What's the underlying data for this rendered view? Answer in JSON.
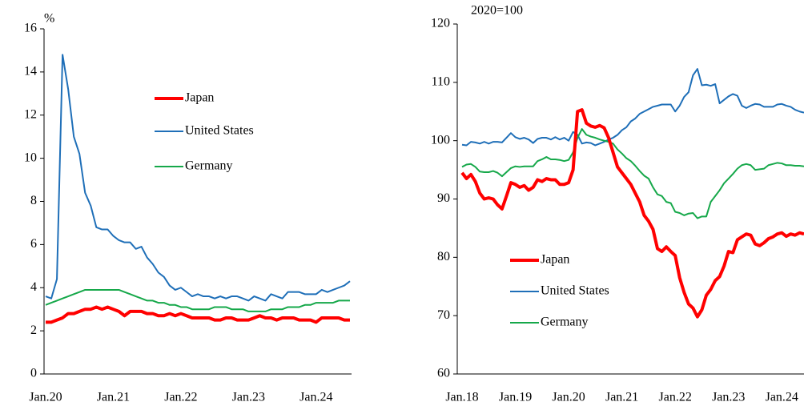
{
  "chart_data": [
    {
      "type": "line",
      "y_label": "%",
      "categories": [
        "Jan.20",
        null,
        null,
        null,
        null,
        null,
        null,
        null,
        null,
        null,
        null,
        null,
        "Jan.21",
        null,
        null,
        null,
        null,
        null,
        null,
        null,
        null,
        null,
        null,
        null,
        "Jan.22",
        null,
        null,
        null,
        null,
        null,
        null,
        null,
        null,
        null,
        null,
        null,
        "Jan.23",
        null,
        null,
        null,
        null,
        null,
        null,
        null,
        null,
        null,
        null,
        null,
        "Jan.24",
        null,
        null,
        null,
        null,
        null,
        null
      ],
      "ylim": [
        0,
        16
      ],
      "yticks": [
        0,
        2,
        4,
        6,
        8,
        10,
        12,
        14,
        16
      ],
      "series": [
        {
          "name": "Japan",
          "color": "#ff0000",
          "values": [
            2.4,
            2.4,
            2.5,
            2.6,
            2.8,
            2.8,
            2.9,
            3.0,
            3.0,
            3.1,
            3.0,
            3.1,
            3.0,
            2.9,
            2.7,
            2.9,
            2.9,
            2.9,
            2.8,
            2.8,
            2.7,
            2.7,
            2.8,
            2.7,
            2.8,
            2.7,
            2.6,
            2.6,
            2.6,
            2.6,
            2.5,
            2.5,
            2.6,
            2.6,
            2.5,
            2.5,
            2.5,
            2.6,
            2.7,
            2.6,
            2.6,
            2.5,
            2.6,
            2.6,
            2.6,
            2.5,
            2.5,
            2.5,
            2.4,
            2.6,
            2.6,
            2.6,
            2.6,
            2.5,
            2.5
          ]
        },
        {
          "name": "United States",
          "color": "#1f6fb8",
          "values": [
            3.6,
            3.5,
            4.4,
            14.8,
            13.2,
            11.0,
            10.2,
            8.4,
            7.8,
            6.8,
            6.7,
            6.7,
            6.4,
            6.2,
            6.1,
            6.1,
            5.8,
            5.9,
            5.4,
            5.1,
            4.7,
            4.5,
            4.1,
            3.9,
            4.0,
            3.8,
            3.6,
            3.7,
            3.6,
            3.6,
            3.5,
            3.6,
            3.5,
            3.6,
            3.6,
            3.5,
            3.4,
            3.6,
            3.5,
            3.4,
            3.7,
            3.6,
            3.5,
            3.8,
            3.8,
            3.8,
            3.7,
            3.7,
            3.7,
            3.9,
            3.8,
            3.9,
            4.0,
            4.1,
            4.3
          ]
        },
        {
          "name": "Germany",
          "color": "#16a84a",
          "values": [
            3.2,
            3.3,
            3.4,
            3.5,
            3.6,
            3.7,
            3.8,
            3.9,
            3.9,
            3.9,
            3.9,
            3.9,
            3.9,
            3.9,
            3.8,
            3.7,
            3.6,
            3.5,
            3.4,
            3.4,
            3.3,
            3.3,
            3.2,
            3.2,
            3.1,
            3.1,
            3.0,
            3.0,
            3.0,
            3.0,
            3.1,
            3.1,
            3.1,
            3.0,
            3.0,
            3.0,
            2.9,
            2.9,
            2.9,
            2.9,
            3.0,
            3.0,
            3.0,
            3.1,
            3.1,
            3.1,
            3.2,
            3.2,
            3.3,
            3.3,
            3.3,
            3.3,
            3.4,
            3.4,
            3.4
          ]
        }
      ]
    },
    {
      "type": "line",
      "y_label": "2020=100",
      "categories": [
        "Jan.18",
        null,
        null,
        null,
        null,
        null,
        null,
        null,
        null,
        null,
        null,
        null,
        "Jan.19",
        null,
        null,
        null,
        null,
        null,
        null,
        null,
        null,
        null,
        null,
        null,
        "Jan.20",
        null,
        null,
        null,
        null,
        null,
        null,
        null,
        null,
        null,
        null,
        null,
        "Jan.21",
        null,
        null,
        null,
        null,
        null,
        null,
        null,
        null,
        null,
        null,
        null,
        "Jan.22",
        null,
        null,
        null,
        null,
        null,
        null,
        null,
        null,
        null,
        null,
        null,
        "Jan.23",
        null,
        null,
        null,
        null,
        null,
        null,
        null,
        null,
        null,
        null,
        null,
        "Jan.24",
        null,
        null,
        null,
        null,
        null
      ],
      "ylim": [
        60,
        120
      ],
      "yticks": [
        60,
        70,
        80,
        90,
        100,
        110,
        120
      ],
      "series": [
        {
          "name": "Japan",
          "color": "#ff0000",
          "values": [
            94.5,
            93.5,
            94.2,
            93.0,
            91.0,
            90.0,
            90.2,
            90.0,
            89.0,
            88.3,
            90.5,
            92.8,
            92.5,
            92.0,
            92.3,
            91.5,
            92.0,
            93.3,
            93.0,
            93.5,
            93.3,
            93.3,
            92.5,
            92.5,
            92.8,
            95.0,
            105.0,
            105.3,
            103.0,
            102.5,
            102.3,
            102.6,
            102.2,
            100.5,
            98.0,
            95.5,
            94.5,
            93.5,
            92.5,
            91.0,
            89.5,
            87.2,
            86.2,
            84.8,
            81.5,
            81.0,
            81.8,
            81.0,
            80.3,
            76.5,
            74.0,
            72.0,
            71.3,
            69.8,
            71.0,
            73.5,
            74.5,
            76.0,
            76.7,
            78.5,
            81.0,
            80.8,
            83.0,
            83.5,
            84.0,
            83.8,
            82.3,
            82.0,
            82.5,
            83.2,
            83.5,
            84.0,
            84.2,
            83.6,
            84.0,
            83.8,
            84.2,
            84.0
          ]
        },
        {
          "name": "United States",
          "color": "#1f6fb8",
          "values": [
            99.3,
            99.2,
            99.8,
            99.7,
            99.5,
            99.8,
            99.5,
            99.8,
            99.8,
            99.7,
            100.5,
            101.3,
            100.6,
            100.3,
            100.5,
            100.2,
            99.6,
            100.3,
            100.5,
            100.5,
            100.2,
            100.6,
            100.2,
            100.5,
            100.0,
            101.5,
            101.0,
            99.5,
            99.7,
            99.6,
            99.2,
            99.5,
            99.8,
            100.2,
            100.5,
            101.0,
            101.8,
            102.3,
            103.3,
            103.8,
            104.6,
            105.0,
            105.4,
            105.8,
            106.0,
            106.2,
            106.2,
            106.2,
            105.0,
            106.0,
            107.5,
            108.3,
            111.2,
            112.3,
            109.5,
            109.6,
            109.4,
            109.7,
            106.4,
            107.0,
            107.6,
            108.0,
            107.7,
            106.0,
            105.6,
            106.0,
            106.3,
            106.2,
            105.8,
            105.8,
            105.8,
            106.2,
            106.3,
            106.0,
            105.8,
            105.3,
            105.0,
            104.8
          ]
        },
        {
          "name": "Germany",
          "color": "#16a84a",
          "values": [
            95.5,
            95.9,
            96.0,
            95.5,
            94.7,
            94.6,
            94.6,
            94.8,
            94.5,
            93.9,
            94.6,
            95.3,
            95.6,
            95.5,
            95.6,
            95.6,
            95.6,
            96.5,
            96.8,
            97.2,
            96.8,
            96.8,
            96.7,
            96.5,
            96.7,
            98.0,
            100.5,
            102.0,
            101.0,
            100.7,
            100.5,
            100.2,
            100.0,
            99.8,
            99.5,
            98.5,
            97.8,
            97.0,
            96.5,
            95.7,
            94.8,
            94.0,
            93.5,
            92.0,
            90.8,
            90.5,
            89.5,
            89.3,
            87.8,
            87.6,
            87.2,
            87.5,
            87.6,
            86.7,
            87.0,
            87.0,
            89.5,
            90.5,
            91.5,
            92.7,
            93.5,
            94.3,
            95.2,
            95.8,
            96.0,
            95.8,
            95.0,
            95.1,
            95.2,
            95.8,
            96.0,
            96.2,
            96.1,
            95.8,
            95.8,
            95.7,
            95.7,
            95.6
          ]
        }
      ]
    }
  ]
}
